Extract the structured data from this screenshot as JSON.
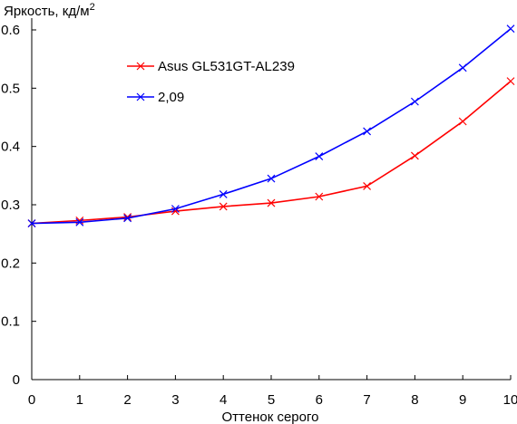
{
  "chart_data": {
    "type": "line",
    "title": "",
    "ylabel": "Яркость, кд/м",
    "ylabel_sup": "2",
    "xlabel": "Оттенок серого",
    "x": [
      0,
      1,
      2,
      3,
      4,
      5,
      6,
      7,
      8,
      9,
      10
    ],
    "xlim": [
      0,
      10
    ],
    "ylim": [
      0,
      0.6
    ],
    "x_ticks": [
      "0",
      "1",
      "2",
      "3",
      "4",
      "5",
      "6",
      "7",
      "8",
      "9",
      "10"
    ],
    "y_ticks": [
      "0",
      "0.1",
      "0.2",
      "0.3",
      "0.4",
      "0.5",
      "0.6"
    ],
    "grid": false,
    "legend_position": "top-left",
    "series": [
      {
        "name": "Asus GL531GT-AL239",
        "color": "#ff0000",
        "marker": "x",
        "values": [
          0.268,
          0.273,
          0.279,
          0.289,
          0.297,
          0.303,
          0.314,
          0.332,
          0.384,
          0.443,
          0.512
        ]
      },
      {
        "name": "2,09",
        "color": "#0000ff",
        "marker": "x",
        "values": [
          0.268,
          0.27,
          0.277,
          0.293,
          0.318,
          0.345,
          0.383,
          0.426,
          0.477,
          0.535,
          0.602
        ]
      }
    ]
  }
}
